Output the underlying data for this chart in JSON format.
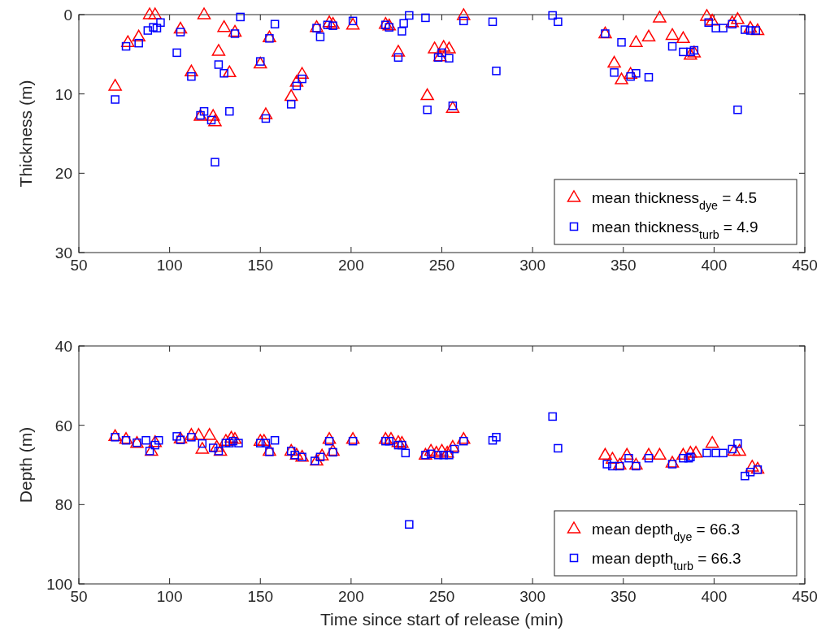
{
  "chart_data": [
    {
      "type": "scatter",
      "ylabel": "Thickness (m)",
      "xlim": [
        50,
        450
      ],
      "xticks": [
        50,
        100,
        150,
        200,
        250,
        300,
        350,
        400,
        450
      ],
      "ylim": [
        30,
        0
      ],
      "yticks": [
        0,
        10,
        20,
        30
      ],
      "legend": "bottom right",
      "grid": false,
      "series": [
        {
          "name": "mean thickness$_{dye}$ = 4.5",
          "color": "#ff0000",
          "marker": "triangle",
          "x": [
            70,
            77,
            83,
            89,
            92,
            106,
            112,
            119,
            117,
            124,
            125,
            127,
            130,
            133,
            136,
            150,
            153,
            155,
            167,
            170,
            173,
            181,
            188,
            190,
            201,
            219,
            221,
            226,
            242,
            246,
            249,
            251,
            254,
            256,
            262,
            340,
            345,
            349,
            354,
            357,
            364,
            370,
            377,
            383,
            387,
            389,
            396,
            399,
            410,
            413,
            420,
            424
          ],
          "values": [
            9,
            3.5,
            2.8,
            0,
            0,
            1.8,
            7.2,
            0,
            12.8,
            12.8,
            13.5,
            4.6,
            1.6,
            7.3,
            2.2,
            6.2,
            12.6,
            2.9,
            10.3,
            8.5,
            7.5,
            1.6,
            1.0,
            1.2,
            1.3,
            1.2,
            1.4,
            4.7,
            10.2,
            4.3,
            5.3,
            4.1,
            4.3,
            11.8,
            0.1,
            2.4,
            6.1,
            8.2,
            7.5,
            3.5,
            2.8,
            0.4,
            2.6,
            3.0,
            5.1,
            4.8,
            0.2,
            0.8,
            1.0,
            0.6,
            1.7,
            2.0
          ]
        },
        {
          "name": "mean thickness$_{turb}$ = 4.9",
          "color": "#0000ff",
          "marker": "square",
          "x": [
            70,
            76,
            83,
            88,
            91,
            93,
            95,
            104,
            106,
            112,
            117,
            119,
            123,
            125,
            127,
            130,
            133,
            136,
            139,
            150,
            153,
            155,
            158,
            167,
            170,
            173,
            181,
            183,
            187,
            190,
            201,
            219,
            221,
            226,
            228,
            229,
            232,
            241,
            242,
            248,
            250,
            254,
            256,
            262,
            278,
            280,
            311,
            314,
            340,
            345,
            349,
            354,
            357,
            364,
            377,
            383,
            387,
            389,
            397,
            401,
            405,
            410,
            413,
            417,
            420,
            423
          ],
          "values": [
            10.7,
            4.0,
            3.6,
            2.0,
            1.6,
            1.7,
            1.0,
            4.8,
            2.2,
            7.8,
            12.7,
            12.2,
            13.3,
            18.6,
            6.3,
            7.4,
            12.2,
            2.4,
            0.3,
            5.9,
            13.1,
            3.0,
            1.2,
            11.3,
            9.0,
            8.1,
            1.7,
            2.8,
            1.3,
            1.4,
            0.8,
            1.3,
            1.6,
            5.4,
            2.1,
            1.1,
            0.1,
            0.4,
            12.0,
            5.4,
            4.8,
            5.5,
            11.5,
            0.8,
            0.9,
            7.1,
            0.1,
            0.9,
            2.4,
            7.3,
            3.5,
            7.8,
            7.4,
            7.9,
            4.0,
            4.7,
            4.7,
            4.5,
            1.0,
            1.7,
            1.7,
            1.2,
            12.0,
            1.9,
            2.0,
            2.0
          ]
        }
      ]
    },
    {
      "type": "scatter",
      "xlabel": "Time since start of release (min)",
      "ylabel": "Depth (m)",
      "xlim": [
        50,
        450
      ],
      "xticks": [
        50,
        100,
        150,
        200,
        250,
        300,
        350,
        400,
        450
      ],
      "ylim": [
        100,
        40
      ],
      "yticks": [
        40,
        60,
        80,
        100
      ],
      "legend": "bottom right",
      "grid": false,
      "series": [
        {
          "name": "mean depth$_{dye}$ = 66.3",
          "color": "#ff0000",
          "marker": "triangle",
          "x": [
            70,
            76,
            82,
            90,
            92,
            106,
            112,
            116,
            118,
            122,
            126,
            128,
            131,
            134,
            136,
            150,
            152,
            155,
            167,
            170,
            173,
            181,
            184,
            188,
            190,
            201,
            219,
            222,
            226,
            228,
            241,
            244,
            247,
            250,
            253,
            256,
            262,
            340,
            344,
            348,
            352,
            357,
            364,
            370,
            377,
            383,
            387,
            390,
            399,
            411,
            414,
            421,
            424
          ],
          "values": [
            62.8,
            63.5,
            64.5,
            66.5,
            64.3,
            63.4,
            62.5,
            62.5,
            66,
            62.5,
            65.5,
            66.5,
            64,
            63.2,
            63.5,
            64,
            64,
            66.5,
            66.5,
            67.5,
            68,
            69,
            67.7,
            63.5,
            66.5,
            63.5,
            63.5,
            63.5,
            64.3,
            64.5,
            67.5,
            66.5,
            67,
            66.5,
            67,
            65.5,
            63.5,
            67.5,
            68.5,
            70,
            67.5,
            70,
            67.5,
            67.5,
            69.5,
            67.5,
            67,
            67,
            64.5,
            66.5,
            66.5,
            70.5,
            71
          ]
        },
        {
          "name": "mean depth$_{turb}$ = 66.3",
          "color": "#0000ff",
          "marker": "square",
          "x": [
            70,
            76,
            82,
            87,
            89,
            92,
            94,
            104,
            106,
            112,
            118,
            124,
            127,
            131,
            133,
            135,
            138,
            150,
            153,
            155,
            158,
            167,
            169,
            173,
            180,
            183,
            188,
            190,
            201,
            219,
            221,
            226,
            228,
            230,
            232,
            241,
            244,
            248,
            251,
            254,
            257,
            262,
            278,
            280,
            311,
            314,
            341,
            344,
            348,
            353,
            357,
            364,
            377,
            383,
            386,
            387,
            396,
            401,
            405,
            410,
            413,
            417,
            420,
            424
          ],
          "values": [
            63,
            63.8,
            64.4,
            63.8,
            66.5,
            65,
            63.8,
            62.8,
            63.7,
            63,
            64.6,
            65.7,
            66.5,
            64.5,
            64.5,
            64,
            64.5,
            64.5,
            64.5,
            66.7,
            63.8,
            66.5,
            67.5,
            68,
            69,
            68,
            64,
            66.8,
            64,
            64,
            64,
            65,
            65,
            67,
            85,
            67.5,
            67.2,
            67.5,
            67.5,
            67.5,
            66,
            64,
            63.8,
            63,
            57.8,
            65.8,
            69.8,
            70.3,
            70.3,
            68.3,
            70.3,
            68.3,
            69.8,
            68.3,
            68.3,
            68,
            67,
            67,
            67,
            66,
            64.6,
            72.8,
            71.8,
            71.2
          ]
        }
      ]
    }
  ]
}
